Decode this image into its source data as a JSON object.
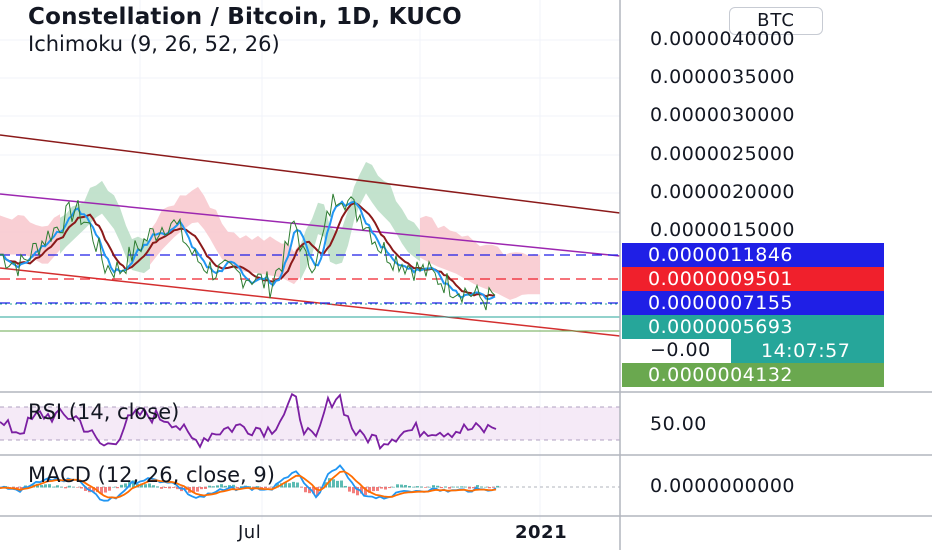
{
  "header": {
    "title": "Constellation / Bitcoin, 1D, KUCO",
    "indicator": "Ichimoku (9, 26, 52, 26)",
    "currency_button": "BTC"
  },
  "price_axis": {
    "ticks": [
      "0.0000040000",
      "0.0000035000",
      "0.0000030000",
      "0.0000025000",
      "0.0000020000",
      "0.0000015000"
    ],
    "tick_values": [
      4.0,
      3.5,
      3.0,
      2.5,
      2.0,
      1.5
    ]
  },
  "price_tags": [
    {
      "label": "0.0000011846",
      "value": 1.1846,
      "color": "#1f1fe6"
    },
    {
      "label": "0.0000009501",
      "value": 0.9501,
      "color": "#f0202c"
    },
    {
      "label": "0.0000007155",
      "value": 0.7155,
      "color": "#1f1fe6"
    },
    {
      "label": "0.0000005693",
      "value": 0.5693,
      "color": "#26a69a"
    },
    {
      "label": "0.0000004132",
      "value": 0.4132,
      "color": "#6aa84f"
    }
  ],
  "clipped_tag": "−0.00",
  "countdown": "14:07:57",
  "rsi": {
    "label": "RSI (14, close)",
    "tick": "50.00"
  },
  "macd": {
    "label": "MACD (12, 26, close, 9)",
    "tick": "0.0000000000"
  },
  "time_axis": {
    "labels": [
      "Jul",
      "2021"
    ]
  },
  "colors": {
    "price_line": "#8b1a1a",
    "conversion_line": "#2196f3",
    "channel_red": "#d32f2f",
    "channel_purple": "#9c27b0",
    "cloud_red": "#f8c7cc",
    "cloud_green": "#b9ddc4",
    "rsi_line": "#7b1fa2",
    "macd_line": "#2196f3",
    "signal_line": "#ff6d00"
  }
}
